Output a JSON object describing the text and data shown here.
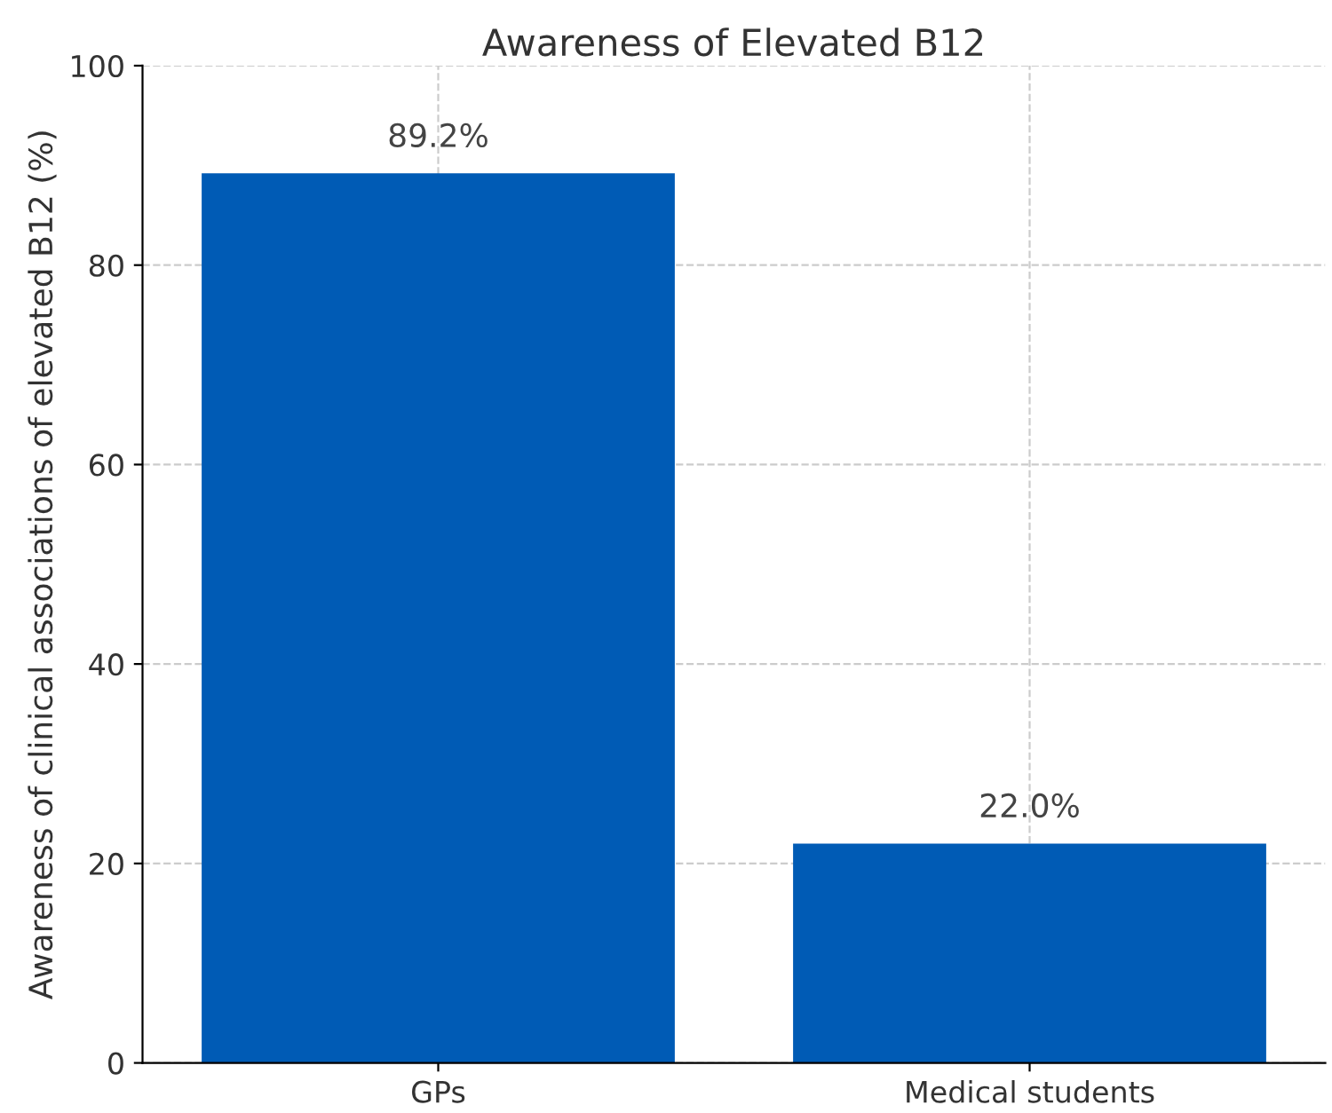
{
  "chart_data": {
    "type": "bar",
    "title": "Awareness of Elevated B12",
    "ylabel": "Awareness of clinical associations of elevated B12 (%)",
    "categories": [
      "GPs",
      "Medical students"
    ],
    "values": [
      89.2,
      22.0
    ],
    "color": "#005bb5",
    "value_labels": [
      "89.2%",
      "22.0%"
    ],
    "ylim": [
      0,
      100
    ],
    "yticks": [
      0,
      20,
      40,
      60,
      80,
      100
    ],
    "grid": true
  }
}
